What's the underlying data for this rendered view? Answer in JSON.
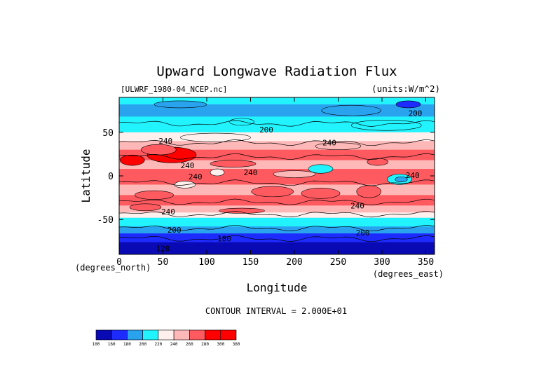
{
  "chart_data": {
    "type": "heatmap",
    "title": "Upward Longwave Radiation Flux",
    "subtitle_left": "[ULWRF_1980-04_NCEP.nc]",
    "subtitle_right": "(units:W/m^2)",
    "xlabel": "Longitude",
    "ylabel": "Latitude",
    "x_unit_note": "(degrees_east)",
    "y_unit_note": "(degrees_north)",
    "xlim": [
      0,
      360
    ],
    "ylim": [
      -90,
      90
    ],
    "x_ticks": [
      0,
      50,
      100,
      150,
      200,
      250,
      300,
      350
    ],
    "y_ticks": [
      50,
      0,
      -50
    ],
    "contour_interval_text": "CONTOUR INTERVAL = 2.000E+01",
    "colorbar": {
      "levels": [
        100,
        160,
        180,
        200,
        220,
        240,
        260,
        280,
        300,
        360
      ],
      "colors": [
        "#0a0ab4",
        "#1e2bff",
        "#2aa3ef",
        "#22f4ff",
        "#fff0ee",
        "#ffb8b8",
        "#ff5a60",
        "#ff0000",
        "#ff0000"
      ]
    },
    "contour_labels": [
      {
        "text": "200",
        "lon": 338,
        "lat": 72
      },
      {
        "text": "200",
        "lon": 168,
        "lat": 53
      },
      {
        "text": "240",
        "lon": 53,
        "lat": 40
      },
      {
        "text": "240",
        "lon": 240,
        "lat": 38
      },
      {
        "text": "240",
        "lon": 78,
        "lat": 12
      },
      {
        "text": "240",
        "lon": 87,
        "lat": -1
      },
      {
        "text": "240",
        "lon": 150,
        "lat": 4
      },
      {
        "text": "240",
        "lon": 335,
        "lat": 1
      },
      {
        "text": "240",
        "lon": 272,
        "lat": -34
      },
      {
        "text": "240",
        "lon": 56,
        "lat": -41
      },
      {
        "text": "200",
        "lon": 63,
        "lat": -62
      },
      {
        "text": "200",
        "lon": 278,
        "lat": -65
      },
      {
        "text": "180",
        "lon": 120,
        "lat": -72
      },
      {
        "text": "120",
        "lon": 50,
        "lat": -83
      }
    ],
    "grid": false
  }
}
